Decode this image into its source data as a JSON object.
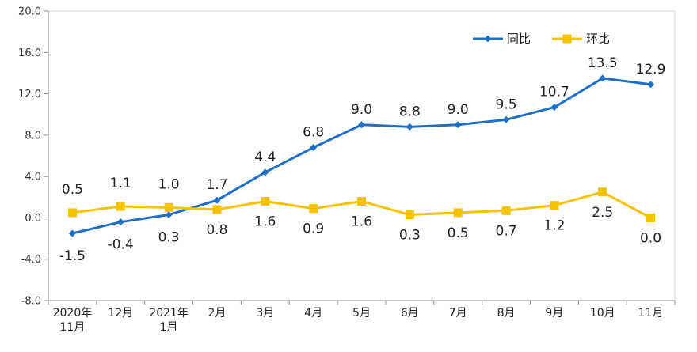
{
  "chart_data": {
    "type": "line",
    "categories": [
      [
        "2020年",
        "11月"
      ],
      [
        "12月"
      ],
      [
        "2021年",
        "1月"
      ],
      [
        "2月"
      ],
      [
        "3月"
      ],
      [
        "4月"
      ],
      [
        "5月"
      ],
      [
        "6月"
      ],
      [
        "7月"
      ],
      [
        "8月"
      ],
      [
        "9月"
      ],
      [
        "10月"
      ],
      [
        "11月"
      ]
    ],
    "series": [
      {
        "name": "同比",
        "color": "#1f6fc5",
        "marker": "diamond",
        "values": [
          -1.5,
          -0.4,
          0.3,
          1.7,
          4.4,
          6.8,
          9.0,
          8.8,
          9.0,
          9.5,
          10.7,
          13.5,
          12.9
        ],
        "labels": [
          "-1.5",
          "-0.4",
          "0.3",
          "1.7",
          "4.4",
          "6.8",
          "9.0",
          "8.8",
          "9.0",
          "9.5",
          "10.7",
          "13.5",
          "12.9"
        ]
      },
      {
        "name": "环比",
        "color": "#f5c200",
        "marker": "square",
        "values": [
          0.5,
          1.1,
          1.0,
          0.8,
          1.6,
          0.9,
          1.6,
          0.3,
          0.5,
          0.7,
          1.2,
          2.5,
          0.0
        ],
        "labels": [
          "0.5",
          "1.1",
          "1.0",
          "0.8",
          "1.6",
          "0.9",
          "1.6",
          "0.3",
          "0.5",
          "0.7",
          "1.2",
          "2.5",
          "0.0"
        ]
      }
    ],
    "ylim": [
      -8.0,
      20.0
    ],
    "yticks": [
      "20.0",
      "16.0",
      "12.0",
      "8.0",
      "4.0",
      "0.0",
      "-4.0",
      "-8.0"
    ],
    "grid": false,
    "legend": "top-right"
  }
}
